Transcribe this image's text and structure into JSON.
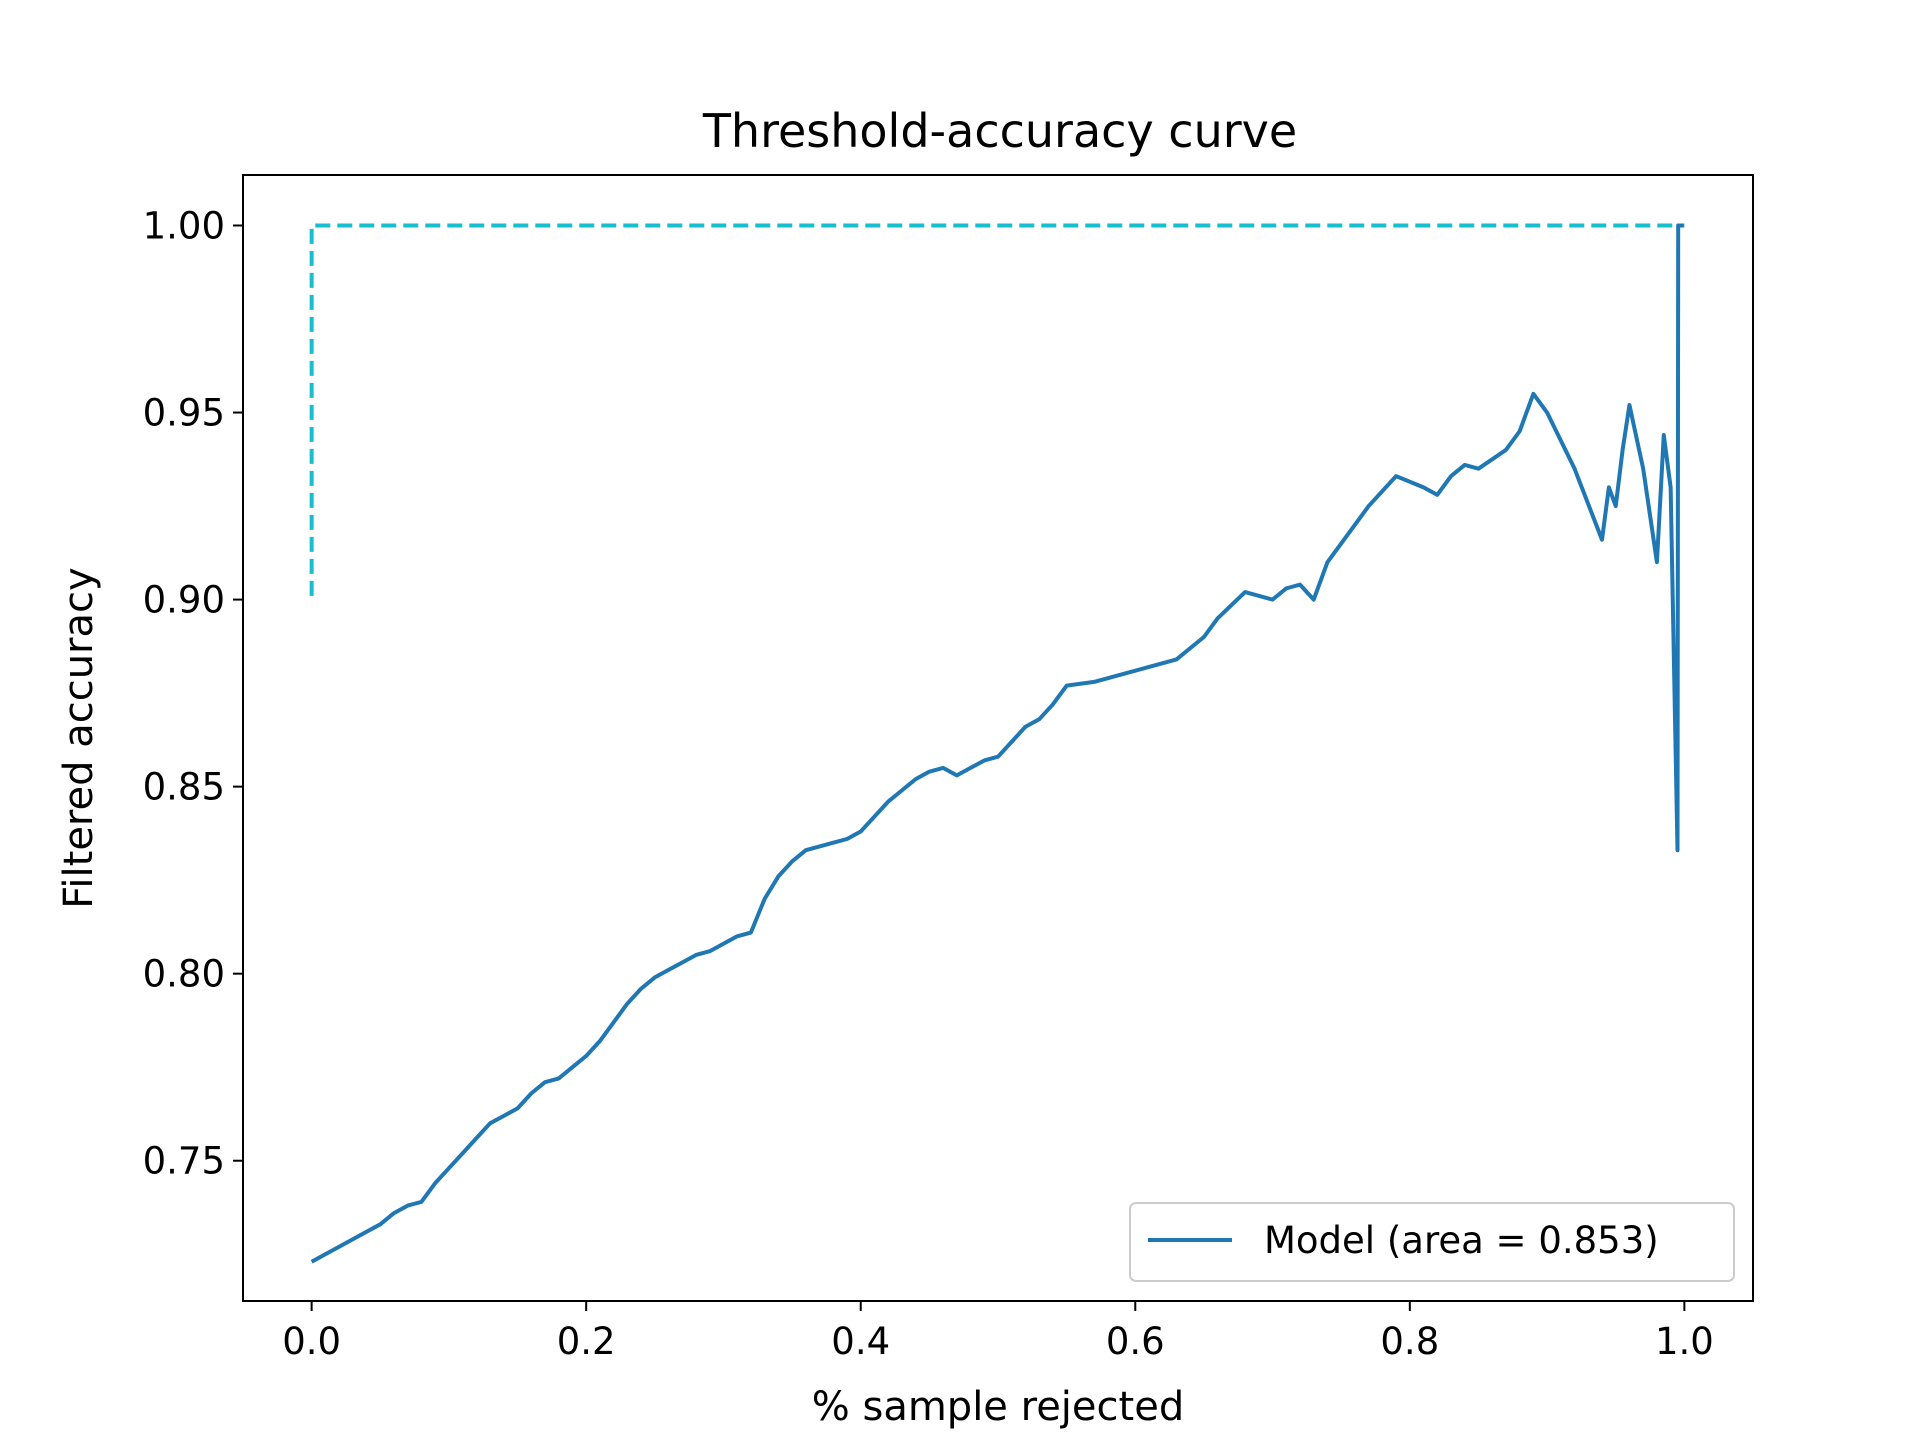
{
  "chart_data": {
    "type": "line",
    "title": "Threshold-accuracy curve",
    "xlabel": "% sample rejected",
    "ylabel": "Filtered accuracy",
    "xlim": [
      -0.05,
      1.05
    ],
    "ylim": [
      0.7125,
      1.0135
    ],
    "xticks": [
      0.0,
      0.2,
      0.4,
      0.6,
      0.8,
      1.0
    ],
    "xtick_labels": [
      "0.0",
      "0.2",
      "0.4",
      "0.6",
      "0.8",
      "1.0"
    ],
    "yticks": [
      0.75,
      0.8,
      0.85,
      0.9,
      0.95,
      1.0
    ],
    "ytick_labels": [
      "0.75",
      "0.80",
      "0.85",
      "0.90",
      "0.95",
      "1.00"
    ],
    "grid": false,
    "legend": {
      "position": "lower-right",
      "entries": [
        "Model (area = 0.853)"
      ]
    },
    "series": [
      {
        "name": "Model (area = 0.853)",
        "color": "#1f77b4",
        "style": "solid",
        "x": [
          0.0,
          0.01,
          0.02,
          0.03,
          0.04,
          0.05,
          0.06,
          0.07,
          0.08,
          0.09,
          0.1,
          0.11,
          0.12,
          0.13,
          0.14,
          0.15,
          0.16,
          0.17,
          0.18,
          0.19,
          0.2,
          0.21,
          0.22,
          0.23,
          0.24,
          0.25,
          0.26,
          0.27,
          0.28,
          0.29,
          0.3,
          0.31,
          0.32,
          0.33,
          0.34,
          0.35,
          0.36,
          0.37,
          0.38,
          0.39,
          0.4,
          0.41,
          0.42,
          0.43,
          0.44,
          0.45,
          0.46,
          0.47,
          0.48,
          0.49,
          0.5,
          0.51,
          0.52,
          0.53,
          0.54,
          0.55,
          0.57,
          0.59,
          0.61,
          0.63,
          0.65,
          0.66,
          0.68,
          0.7,
          0.71,
          0.72,
          0.73,
          0.74,
          0.76,
          0.77,
          0.79,
          0.81,
          0.82,
          0.83,
          0.84,
          0.85,
          0.87,
          0.88,
          0.89,
          0.9,
          0.92,
          0.94,
          0.945,
          0.95,
          0.955,
          0.96,
          0.97,
          0.98,
          0.985,
          0.99,
          0.995,
          0.9955,
          0.9995
        ],
        "y": [
          0.723,
          0.725,
          0.727,
          0.729,
          0.731,
          0.733,
          0.736,
          0.738,
          0.739,
          0.744,
          0.748,
          0.752,
          0.756,
          0.76,
          0.762,
          0.764,
          0.768,
          0.771,
          0.772,
          0.775,
          0.778,
          0.782,
          0.787,
          0.792,
          0.796,
          0.799,
          0.801,
          0.803,
          0.805,
          0.806,
          0.808,
          0.81,
          0.811,
          0.82,
          0.826,
          0.83,
          0.833,
          0.834,
          0.835,
          0.836,
          0.838,
          0.842,
          0.846,
          0.849,
          0.852,
          0.854,
          0.855,
          0.853,
          0.855,
          0.857,
          0.858,
          0.862,
          0.866,
          0.868,
          0.872,
          0.877,
          0.878,
          0.88,
          0.882,
          0.884,
          0.89,
          0.895,
          0.902,
          0.9,
          0.903,
          0.904,
          0.9,
          0.91,
          0.92,
          0.925,
          0.933,
          0.93,
          0.928,
          0.933,
          0.936,
          0.935,
          0.94,
          0.945,
          0.955,
          0.95,
          0.935,
          0.916,
          0.93,
          0.925,
          0.94,
          0.952,
          0.935,
          0.91,
          0.944,
          0.93,
          0.833,
          1.0,
          1.0
        ]
      },
      {
        "name": "",
        "color": "#17becf",
        "style": "dashed",
        "x": [
          0.0,
          0.0,
          1.0
        ],
        "y": [
          0.901,
          1.0,
          1.0
        ]
      }
    ]
  }
}
